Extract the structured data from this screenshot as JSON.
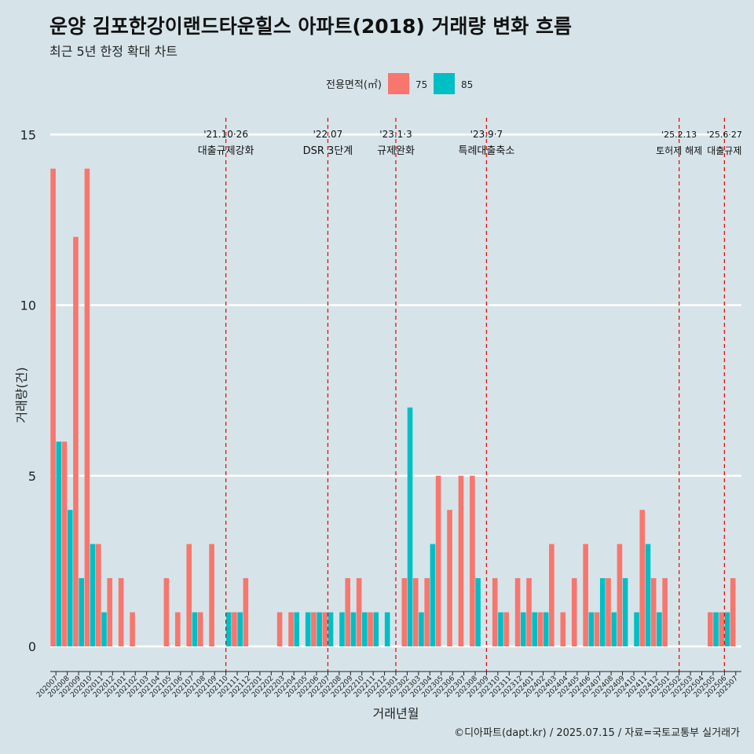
{
  "chart_data": {
    "type": "bar",
    "title": "운양 김포한강이랜드타운힐스 아파트(2018) 거래량 변화 흐름",
    "subtitle": "최근 5년 한정 확대 차트",
    "xlabel": "거래년월",
    "ylabel": "거래량(건)",
    "ylim": [
      -1,
      16
    ],
    "yticks": [
      0,
      5,
      10,
      15
    ],
    "grid": "horizontal",
    "legend_title": "전용면적(㎡)",
    "legend_position": "top",
    "caption": "©디아파트(dapt.kr) / 2025.07.15 / 자료=국토교통부 실거래가",
    "categories": [
      "202007",
      "202008",
      "202009",
      "202010",
      "202011",
      "202012",
      "202101",
      "202102",
      "202103",
      "202104",
      "202105",
      "202106",
      "202107",
      "202108",
      "202109",
      "202110",
      "202111",
      "202112",
      "202201",
      "202202",
      "202203",
      "202204",
      "202205",
      "202206",
      "202207",
      "202208",
      "202209",
      "202210",
      "202211",
      "202212",
      "202301",
      "202302",
      "202303",
      "202304",
      "202305",
      "202306",
      "202307",
      "202308",
      "202309",
      "202310",
      "202311",
      "202312",
      "202401",
      "202402",
      "202403",
      "202404",
      "202405",
      "202406",
      "202407",
      "202408",
      "202409",
      "202410",
      "202411",
      "202412",
      "202501",
      "202502",
      "202503",
      "202504",
      "202505",
      "202506",
      "202507"
    ],
    "series": [
      {
        "name": "75",
        "color": "#f8766d",
        "values": [
          14,
          6,
          12,
          14,
          3,
          2,
          2,
          1,
          0,
          0,
          2,
          1,
          3,
          1,
          3,
          0,
          1,
          2,
          0,
          0,
          1,
          1,
          0,
          1,
          1,
          0,
          2,
          2,
          1,
          0,
          0,
          2,
          2,
          2,
          5,
          4,
          5,
          5,
          0,
          2,
          1,
          2,
          2,
          1,
          3,
          1,
          2,
          3,
          1,
          2,
          3,
          0,
          4,
          2,
          2,
          0,
          0,
          0,
          1,
          1,
          2
        ]
      },
      {
        "name": "85",
        "color": "#00bfc4",
        "values": [
          6,
          4,
          2,
          3,
          1,
          0,
          0,
          0,
          0,
          0,
          0,
          0,
          1,
          0,
          0,
          1,
          1,
          0,
          0,
          0,
          0,
          1,
          1,
          1,
          1,
          1,
          1,
          1,
          1,
          1,
          0,
          7,
          1,
          3,
          0,
          0,
          0,
          2,
          0,
          1,
          0,
          1,
          1,
          1,
          0,
          0,
          0,
          1,
          2,
          1,
          2,
          1,
          3,
          1,
          0,
          0,
          0,
          0,
          1,
          1,
          0
        ]
      }
    ],
    "annotations": [
      {
        "category": "202110",
        "date": "'21.10·26",
        "label": "대출규제강화"
      },
      {
        "category": "202207",
        "date": "'22.07",
        "label": "DSR 3단계"
      },
      {
        "category": "202301",
        "date": "'23.1·3",
        "label": "규제완화"
      },
      {
        "category": "202309",
        "date": "'23.9·7",
        "label": "특례대출축소"
      },
      {
        "category": "202502",
        "date": "'25.2.13",
        "label": "토허제 해제"
      },
      {
        "category": "202506",
        "date": "'25.6·27",
        "label": "대출규제"
      }
    ]
  }
}
